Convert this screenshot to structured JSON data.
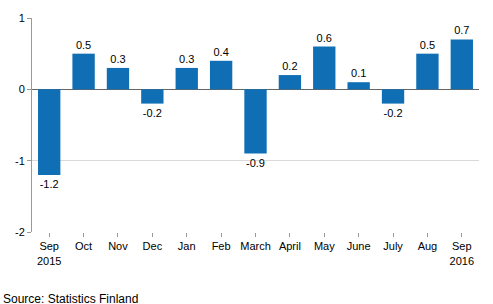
{
  "chart_data": {
    "type": "bar",
    "categories": [
      "Sep\n2015",
      "Oct",
      "Nov",
      "Dec",
      "Jan",
      "Feb",
      "March",
      "April",
      "May",
      "June",
      "July",
      "Aug",
      "Sep\n2016"
    ],
    "values": [
      -1.2,
      0.5,
      0.3,
      -0.2,
      0.3,
      0.4,
      -0.9,
      0.2,
      0.6,
      0.1,
      -0.2,
      0.5,
      0.7
    ],
    "color": "#0f6eb4",
    "ylim": [
      -2,
      1
    ],
    "yticks": [
      -2,
      -1,
      0,
      1
    ],
    "grid": true,
    "data_labels": true,
    "annotations": [
      "Source: Statistics Finland"
    ]
  }
}
